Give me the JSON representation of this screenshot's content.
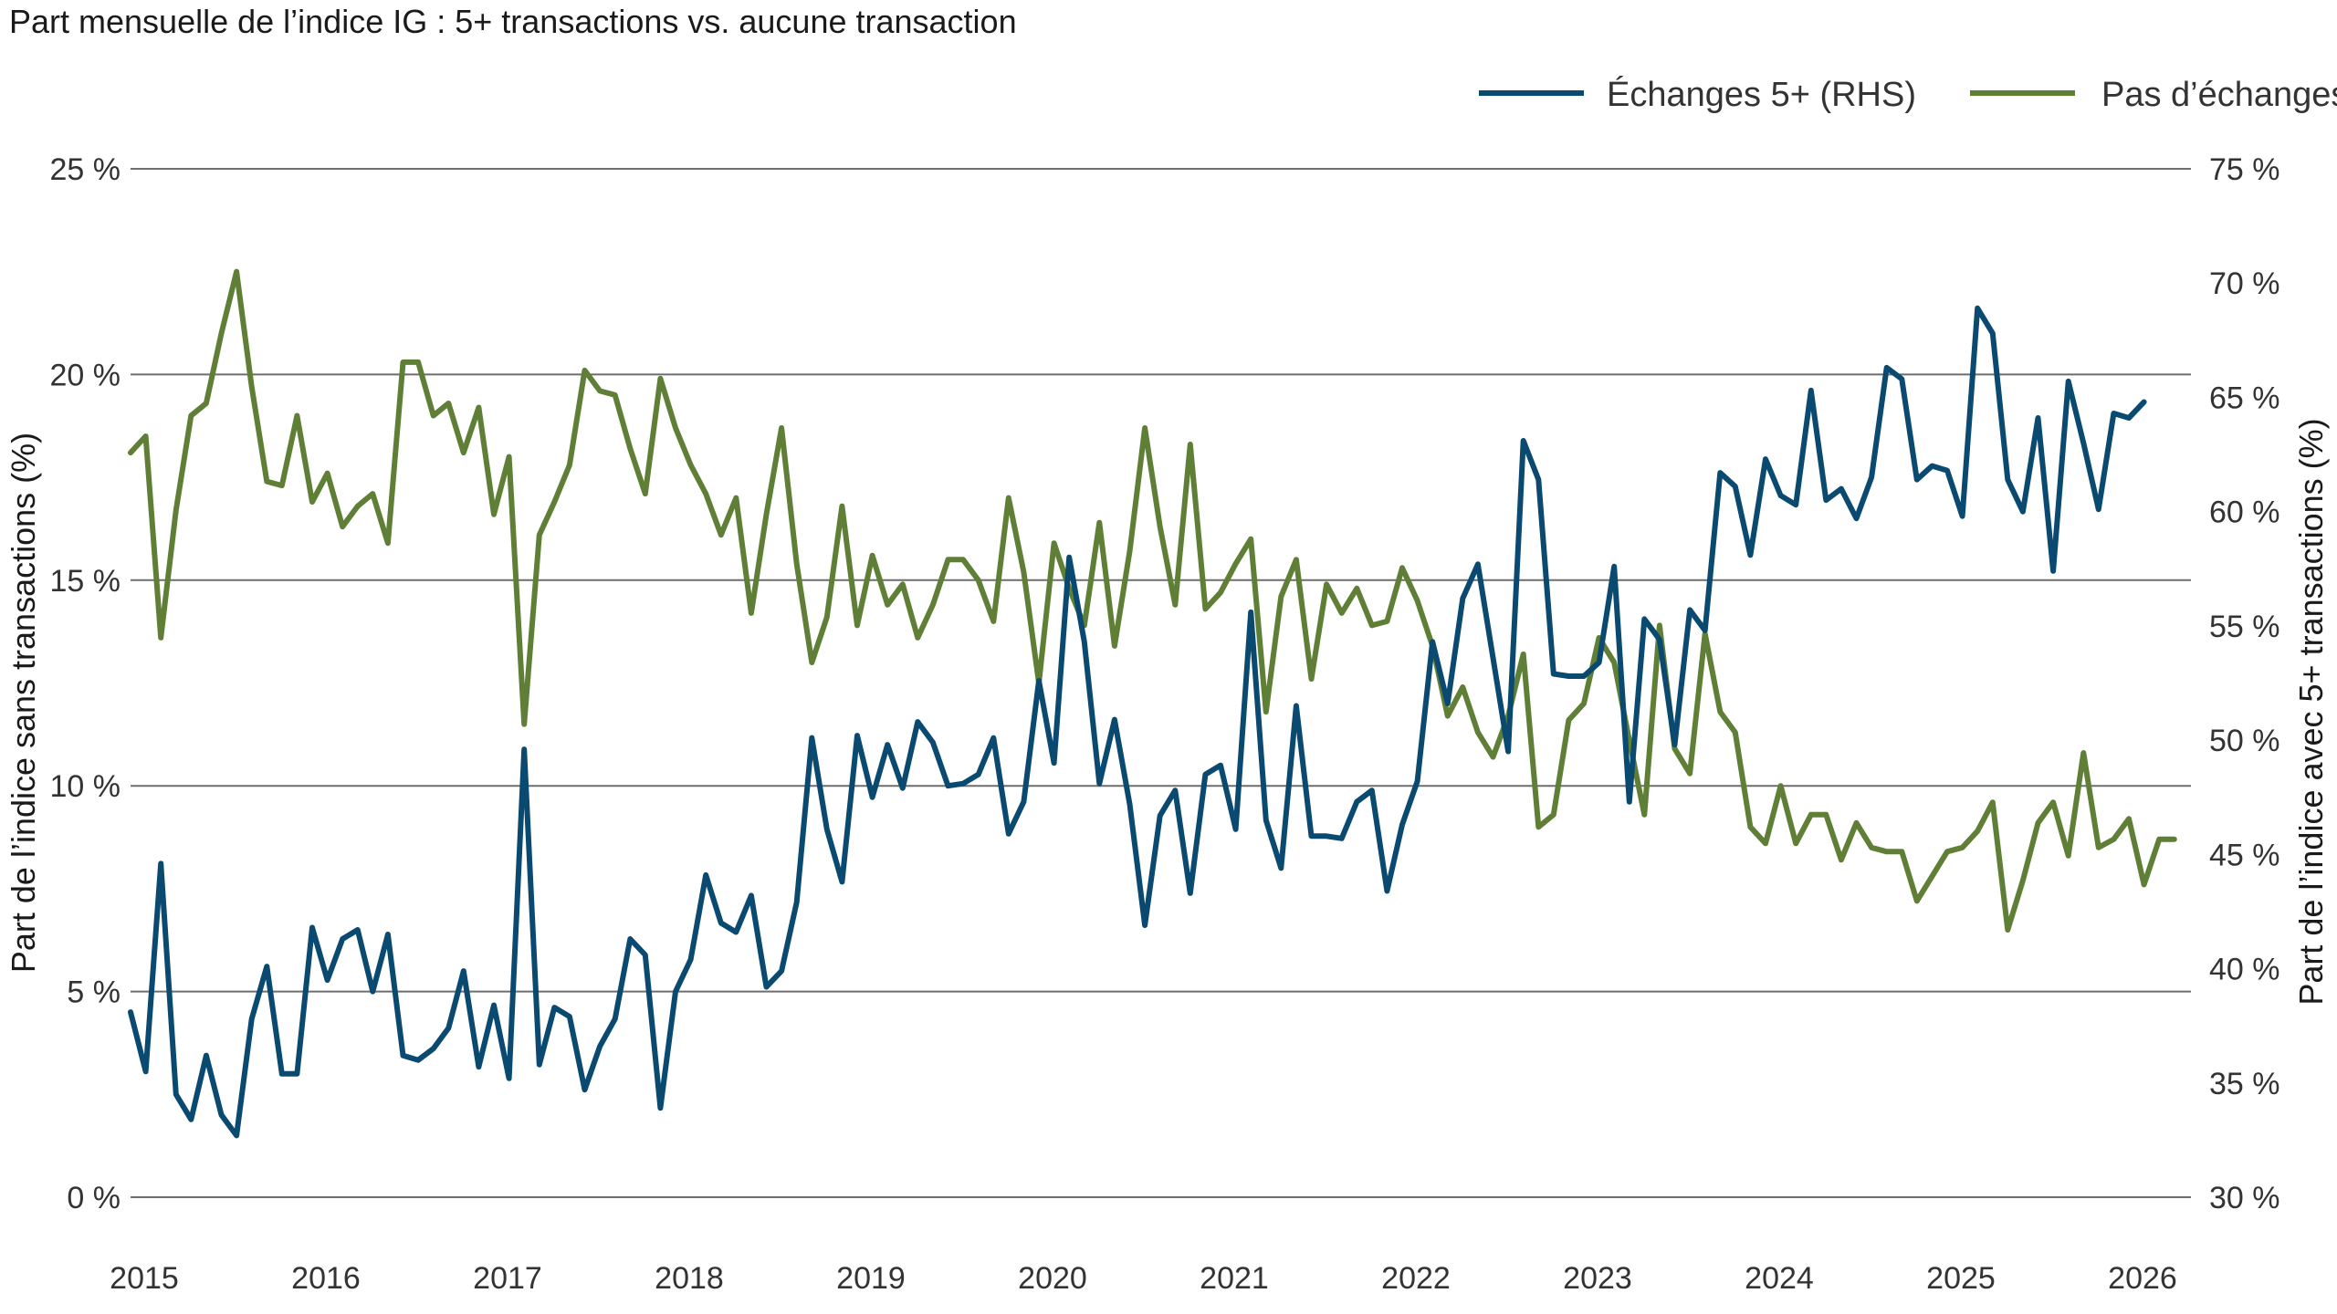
{
  "chart_data": {
    "type": "line",
    "title": "Part mensuelle de l’indice IG : 5+ transactions vs. aucune transaction",
    "ylabel_left": "Part de l’indice sans transactions (%)",
    "ylabel_right": "Part de l’indice avec 5+ transactions (%)",
    "ylim_left": [
      0,
      25
    ],
    "ylim_right": [
      30,
      75
    ],
    "left_ticks": [
      "0 %",
      "5 %",
      "10 %",
      "15 %",
      "20 %",
      "25 %"
    ],
    "right_ticks": [
      "30 %",
      "35 %",
      "40 %",
      "45 %",
      "50 %",
      "55 %",
      "60 %",
      "65 %",
      "70 %",
      "75 %"
    ],
    "x_ticks": [
      "2015",
      "2016",
      "2017",
      "2018",
      "2019",
      "2020",
      "2021",
      "2022",
      "2023",
      "2024",
      "2025",
      "2026"
    ],
    "grid": true,
    "legend_position": "top-right",
    "x_start": "2015-01",
    "series": [
      {
        "name": "Échanges 5+ (RHS)",
        "axis": "right",
        "color": "#0b4a70",
        "values": [
          38.1,
          35.5,
          44.6,
          34.5,
          33.4,
          36.2,
          33.6,
          32.7,
          37.8,
          40.1,
          35.4,
          35.4,
          41.8,
          39.5,
          41.3,
          41.7,
          39.0,
          41.5,
          36.2,
          36.0,
          36.5,
          37.4,
          39.9,
          35.7,
          38.4,
          35.2,
          49.6,
          35.8,
          38.3,
          37.9,
          34.7,
          36.6,
          37.8,
          41.3,
          40.6,
          33.9,
          39.0,
          40.4,
          44.1,
          42.0,
          41.6,
          43.2,
          39.2,
          39.9,
          42.9,
          50.1,
          46.1,
          43.8,
          50.2,
          47.5,
          49.8,
          47.9,
          50.8,
          49.9,
          48.0,
          48.1,
          48.5,
          50.1,
          45.9,
          47.3,
          52.6,
          49.0,
          58.0,
          54.3,
          48.1,
          50.9,
          47.2,
          41.9,
          46.7,
          47.8,
          43.3,
          48.5,
          48.9,
          46.1,
          55.6,
          46.5,
          44.4,
          51.5,
          45.8,
          45.8,
          45.7,
          47.3,
          47.8,
          43.4,
          46.3,
          48.2,
          54.3,
          51.6,
          56.2,
          57.7,
          53.6,
          49.5,
          63.1,
          61.4,
          52.9,
          52.8,
          52.8,
          53.4,
          57.6,
          47.3,
          55.3,
          54.4,
          49.8,
          55.7,
          54.8,
          61.7,
          61.1,
          58.1,
          62.3,
          60.7,
          60.3,
          65.3,
          60.5,
          61.0,
          59.7,
          61.5,
          66.3,
          65.8,
          61.4,
          62.0,
          61.8,
          59.8,
          68.9,
          67.8,
          61.4,
          60.0,
          64.1,
          57.4,
          65.7,
          63.0,
          60.1,
          64.3,
          64.1,
          64.8
        ]
      },
      {
        "name": "Pas d’échanges",
        "axis": "left",
        "color": "#5f7f36",
        "values": [
          18.1,
          18.5,
          13.6,
          16.7,
          19.0,
          19.3,
          21.0,
          22.5,
          19.7,
          17.4,
          17.3,
          19.0,
          16.9,
          17.6,
          16.3,
          16.8,
          17.1,
          15.9,
          20.3,
          20.3,
          19.0,
          19.3,
          18.1,
          19.2,
          16.6,
          18.0,
          11.5,
          16.1,
          16.9,
          17.8,
          20.1,
          19.6,
          19.5,
          18.2,
          17.1,
          19.9,
          18.7,
          17.8,
          17.1,
          16.1,
          17.0,
          14.2,
          16.6,
          18.7,
          15.4,
          13.0,
          14.1,
          16.8,
          13.9,
          15.6,
          14.4,
          14.9,
          13.6,
          14.4,
          15.5,
          15.5,
          15.0,
          14.0,
          17.0,
          15.2,
          12.5,
          15.9,
          14.8,
          13.9,
          16.4,
          13.4,
          15.7,
          18.7,
          16.3,
          14.4,
          18.3,
          14.3,
          14.7,
          15.4,
          16.0,
          11.8,
          14.6,
          15.5,
          12.6,
          14.9,
          14.2,
          14.8,
          13.9,
          14.0,
          15.3,
          14.5,
          13.4,
          11.7,
          12.4,
          11.3,
          10.7,
          11.7,
          13.2,
          9.0,
          9.3,
          11.6,
          12.0,
          13.6,
          13.0,
          11.1,
          9.3,
          13.9,
          10.9,
          10.3,
          13.7,
          11.8,
          11.3,
          9.0,
          8.6,
          10.0,
          8.6,
          9.3,
          9.3,
          8.2,
          9.1,
          8.5,
          8.4,
          8.4,
          7.2,
          7.8,
          8.4,
          8.5,
          8.9,
          9.6,
          6.5,
          7.7,
          9.1,
          9.6,
          8.3,
          10.8,
          8.5,
          8.7,
          9.2,
          7.6,
          8.7,
          8.7
        ]
      }
    ]
  }
}
